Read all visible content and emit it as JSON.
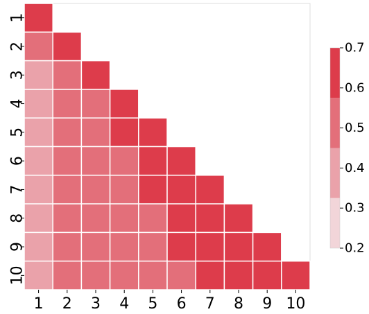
{
  "chart_data": {
    "type": "heatmap",
    "title": "",
    "xlabel": "",
    "ylabel": "",
    "x_categories": [
      "1",
      "2",
      "3",
      "4",
      "5",
      "6",
      "7",
      "8",
      "9",
      "10"
    ],
    "y_categories": [
      "1",
      "2",
      "3",
      "4",
      "5",
      "6",
      "7",
      "8",
      "9",
      "10"
    ],
    "mask": "upper-triangle",
    "values": [
      [
        0.7
      ],
      [
        0.55,
        0.7
      ],
      [
        0.35,
        0.55,
        0.7
      ],
      [
        0.38,
        0.55,
        0.55,
        0.7
      ],
      [
        0.38,
        0.55,
        0.55,
        0.7,
        0.7
      ],
      [
        0.38,
        0.55,
        0.55,
        0.55,
        0.7,
        0.7
      ],
      [
        0.38,
        0.55,
        0.55,
        0.55,
        0.7,
        0.7,
        0.7
      ],
      [
        0.38,
        0.55,
        0.55,
        0.55,
        0.55,
        0.7,
        0.7,
        0.7
      ],
      [
        0.38,
        0.55,
        0.55,
        0.55,
        0.55,
        0.7,
        0.7,
        0.7,
        0.7
      ],
      [
        0.38,
        0.55,
        0.55,
        0.55,
        0.55,
        0.55,
        0.7,
        0.7,
        0.7,
        0.7
      ]
    ],
    "colorbar": {
      "range": [
        0.2,
        0.7
      ],
      "ticks": [
        "0.2",
        "0.3",
        "0.4",
        "0.5",
        "0.6",
        "0.7"
      ],
      "bins": [
        {
          "from": 0.2,
          "to": 0.325,
          "color": "#f2d5d9"
        },
        {
          "from": 0.325,
          "to": 0.45,
          "color": "#eaa2aa"
        },
        {
          "from": 0.45,
          "to": 0.575,
          "color": "#e36f7a"
        },
        {
          "from": 0.575,
          "to": 0.7,
          "color": "#dd3c4b"
        }
      ]
    },
    "grid": false,
    "cell_border_color": "#ffffff"
  }
}
